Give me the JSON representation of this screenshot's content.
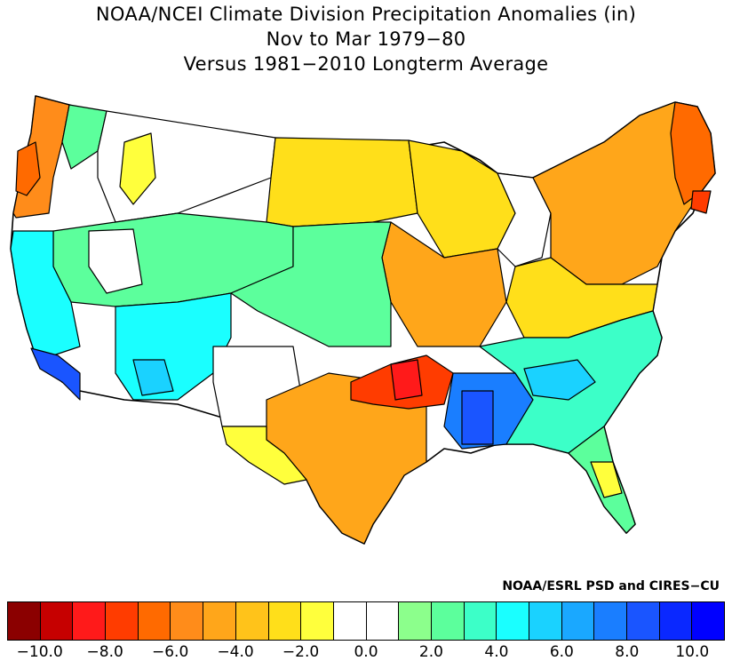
{
  "title": {
    "line1": "NOAA/NCEI Climate Division Precipitation Anomalies (in)",
    "line2": "Nov to Mar 1979−80",
    "line3": "Versus 1981−2010 Longterm Average"
  },
  "credit": "NOAA/ESRL PSD and CIRES−CU",
  "colorbar": {
    "colors": [
      "#8b0000",
      "#c60000",
      "#ff1a1a",
      "#ff3c00",
      "#ff6a00",
      "#ff8c1a",
      "#ffa61a",
      "#ffc31a",
      "#ffdf1a",
      "#ffff3c",
      "#ffffff",
      "#ffffff",
      "#8cff8c",
      "#5cff9c",
      "#3cffc8",
      "#1affff",
      "#1ad2ff",
      "#1aa8ff",
      "#1a7eff",
      "#1a55ff",
      "#0a28ff",
      "#0000ff"
    ],
    "ticks": [
      "−10.0",
      "−8.0",
      "−6.0",
      "−4.0",
      "−2.0",
      "0.0",
      "2.0",
      "4.0",
      "6.0",
      "8.0",
      "10.0"
    ]
  },
  "map": {
    "boundary_color": "#000000",
    "regions": [
      {
        "name": "pacific-northwest-coast",
        "fill": "#ff8c1a"
      },
      {
        "name": "northern-rockies",
        "fill": "#ffffff"
      },
      {
        "name": "northern-plains",
        "fill": "#ffdf1a"
      },
      {
        "name": "upper-midwest",
        "fill": "#ffdf1a"
      },
      {
        "name": "great-lakes",
        "fill": "#ffffff"
      },
      {
        "name": "northeast",
        "fill": "#ff8c1a"
      },
      {
        "name": "new-england-coast",
        "fill": "#ff3c00"
      },
      {
        "name": "mid-atlantic",
        "fill": "#ffc31a"
      },
      {
        "name": "california",
        "fill": "#1affff"
      },
      {
        "name": "southern-california",
        "fill": "#1a55ff"
      },
      {
        "name": "great-basin",
        "fill": "#5cff9c"
      },
      {
        "name": "four-corners",
        "fill": "#1affff"
      },
      {
        "name": "central-plains",
        "fill": "#5cff9c"
      },
      {
        "name": "ozarks",
        "fill": "#ff8c1a"
      },
      {
        "name": "arkansas-red",
        "fill": "#ff3c00"
      },
      {
        "name": "texas",
        "fill": "#ffa61a"
      },
      {
        "name": "new-mexico",
        "fill": "#ffffff"
      },
      {
        "name": "mississippi-alabama",
        "fill": "#1a7eff"
      },
      {
        "name": "southeast",
        "fill": "#3cffc8"
      },
      {
        "name": "florida",
        "fill": "#5cff9c"
      },
      {
        "name": "west-texas",
        "fill": "#ffff3c"
      }
    ]
  }
}
